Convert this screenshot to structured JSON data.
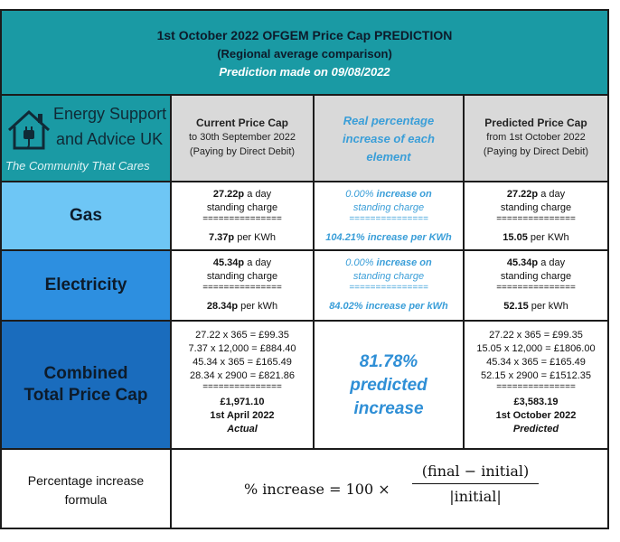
{
  "header": {
    "title": "1st October 2022 OFGEM Price Cap PREDICTION",
    "subtitle": "(Regional average comparison)",
    "prediction_date": "Prediction made on 09/08/2022"
  },
  "logo": {
    "name_line1": "Energy Support",
    "name_line2": "and Advice UK",
    "tagline": "The Community That Cares"
  },
  "columns": {
    "current": {
      "title": "Current Price Cap",
      "line2": "to 30th September 2022",
      "line3": "(Paying by Direct Debit)"
    },
    "increase": {
      "line1": "Real percentage",
      "line2": "increase of each",
      "line3": "element"
    },
    "predicted": {
      "title": "Predicted Price Cap",
      "line2": "from 1st October 2022",
      "line3": "(Paying by Direct Debit)"
    }
  },
  "rows": {
    "gas": {
      "label": "Gas",
      "current": {
        "standing_value": "27.22p",
        "standing_suffix": " a day",
        "standing_label": "standing charge",
        "sep": "===============",
        "unit_value": "7.37p",
        "unit_suffix": " per KWh"
      },
      "increase": {
        "standing_pct": "0.00%",
        "standing_suffix": " increase on",
        "standing_label": "standing charge",
        "sep": "===============",
        "unit_pct": "104.21%",
        "unit_suffix": " increase per KWh"
      },
      "predicted": {
        "standing_value": "27.22p",
        "standing_suffix": " a day",
        "standing_label": "standing charge",
        "sep": "===============",
        "unit_value": "15.05",
        "unit_suffix": " per KWh"
      }
    },
    "electricity": {
      "label": "Electricity",
      "current": {
        "standing_value": "45.34p",
        "standing_suffix": " a day",
        "standing_label": "standing charge",
        "sep": "===============",
        "unit_value": "28.34p",
        "unit_suffix": " per kWh"
      },
      "increase": {
        "standing_pct": "0.00%",
        "standing_suffix": " increase on",
        "standing_label": "standing charge",
        "sep": "===============",
        "unit_pct": "84.02%",
        "unit_suffix": " increase per kWh"
      },
      "predicted": {
        "standing_value": "45.34p",
        "standing_suffix": " a day",
        "standing_label": "standing charge",
        "sep": "===============",
        "unit_value": "52.15",
        "unit_suffix": " per kWh"
      }
    },
    "combined": {
      "label_line1": "Combined",
      "label_line2": "Total Price Cap",
      "current": {
        "l1": "27.22 x 365 = £99.35",
        "l2": "7.37 x 12,000 = £884.40",
        "l3": "45.34 x 365 = £165.49",
        "l4": "28.34 x 2900 = £821.86",
        "sep": "===============",
        "total": "£1,971.10",
        "date": "1st April 2022",
        "status": "Actual"
      },
      "increase": {
        "l1": "81.78%",
        "l2": "predicted",
        "l3": "increase"
      },
      "predicted": {
        "l1": "27.22 x 365 = £99.35",
        "l2": "15.05 x 12,000 = £1806.00",
        "l3": "45.34 x 365 = £165.49",
        "l4": "52.15 x 2900 = £1512.35",
        "sep": "===============",
        "total": "£3,583.19",
        "date": "1st October 2022",
        "status": "Predicted"
      }
    }
  },
  "formula": {
    "label_line1": "Percentage increase",
    "label_line2": "formula",
    "lhs": "% increase = 100 ×",
    "numerator": "(final − initial)",
    "denominator": "|initial|"
  }
}
